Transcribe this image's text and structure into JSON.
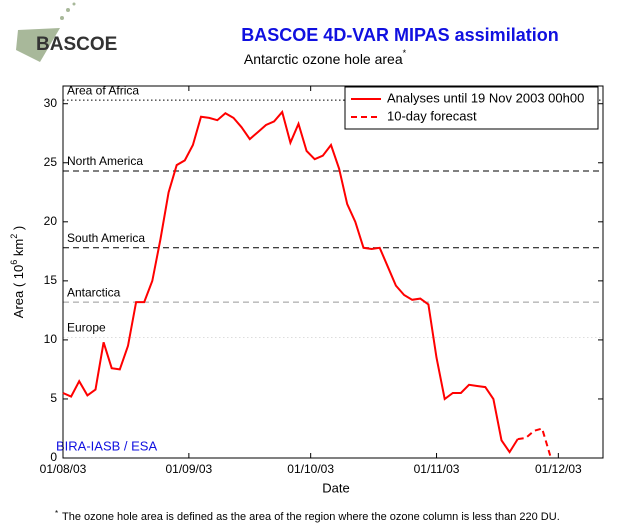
{
  "chart_data": {
    "type": "line",
    "title": "BASCOE 4D-VAR MIPAS assimilation",
    "subtitle": [
      "Antarctic ozone hole area",
      "*"
    ],
    "logo": "BASCOE",
    "x_label": "Date",
    "y_label": [
      "Area ( 10",
      "6",
      " km",
      "2",
      " )"
    ],
    "annotation": "BIRA-IASB / ESA",
    "footnote": [
      "*",
      "The ozone hole area is defined as the area of the region where the ozone column is less than 220 DU."
    ],
    "xlim": [
      "01/08/03",
      "12/12/03"
    ],
    "xticks": [
      "01/08/03",
      "01/09/03",
      "01/10/03",
      "01/11/03",
      "01/12/03"
    ],
    "ylim": [
      0,
      31.5
    ],
    "yticks": [
      0,
      5,
      10,
      15,
      20,
      25,
      30
    ],
    "legend": "upper right",
    "reference_lines": [
      {
        "label": "Area of Africa",
        "value": 30.3,
        "color": "#000000",
        "style": "dotted"
      },
      {
        "label": "North America",
        "value": 24.3,
        "color": "#000000",
        "style": "dashed"
      },
      {
        "label": "South America",
        "value": 17.8,
        "color": "#000000",
        "style": "dashed"
      },
      {
        "label": "Antarctica",
        "value": 13.2,
        "color": "#999999",
        "style": "dashed"
      },
      {
        "label": "Europe",
        "value": 10.2,
        "color": "#dddddd",
        "style": "dotted"
      }
    ],
    "series": [
      {
        "name": "Analyses until 19 Nov 2003 00h00",
        "color": "#ff0000",
        "style": "solid",
        "x": [
          "01/08/03",
          "03/08/03",
          "05/08/03",
          "07/08/03",
          "09/08/03",
          "11/08/03",
          "13/08/03",
          "15/08/03",
          "17/08/03",
          "19/08/03",
          "21/08/03",
          "23/08/03",
          "25/08/03",
          "27/08/03",
          "29/08/03",
          "31/08/03",
          "02/09/03",
          "04/09/03",
          "06/09/03",
          "08/09/03",
          "10/09/03",
          "12/09/03",
          "14/09/03",
          "16/09/03",
          "18/09/03",
          "20/09/03",
          "22/09/03",
          "24/09/03",
          "26/09/03",
          "28/09/03",
          "30/09/03",
          "02/10/03",
          "04/10/03",
          "06/10/03",
          "08/10/03",
          "10/10/03",
          "12/10/03",
          "14/10/03",
          "16/10/03",
          "18/10/03",
          "20/10/03",
          "22/10/03",
          "24/10/03",
          "26/10/03",
          "28/10/03",
          "30/10/03",
          "01/11/03",
          "03/11/03",
          "05/11/03",
          "07/11/03",
          "09/11/03",
          "11/11/03",
          "13/11/03",
          "15/11/03",
          "17/11/03",
          "19/11/03",
          "21/11/03"
        ],
        "values": [
          5.5,
          5.2,
          6.5,
          5.3,
          5.8,
          9.8,
          7.6,
          7.5,
          9.5,
          13.2,
          13.2,
          15.0,
          18.5,
          22.5,
          24.8,
          25.2,
          26.5,
          28.9,
          28.8,
          28.6,
          29.2,
          28.8,
          28.0,
          27.0,
          27.6,
          28.2,
          28.5,
          29.3,
          26.7,
          28.3,
          26.0,
          25.3,
          25.6,
          26.5,
          24.5,
          21.5,
          20.0,
          17.8,
          17.7,
          17.8,
          16.2,
          14.6,
          13.8,
          13.4,
          13.5,
          13.0,
          8.5,
          5.0,
          5.5,
          5.5,
          6.2,
          6.1,
          6.0,
          5.0,
          1.5,
          0.5,
          1.6
        ]
      },
      {
        "name": "10-day forecast",
        "color": "#ff0000",
        "style": "dashed",
        "x": [
          "21/11/03",
          "23/11/03",
          "25/11/03",
          "27/11/03",
          "29/11/03"
        ],
        "values": [
          1.6,
          1.7,
          2.3,
          2.5,
          0.2
        ]
      }
    ]
  }
}
